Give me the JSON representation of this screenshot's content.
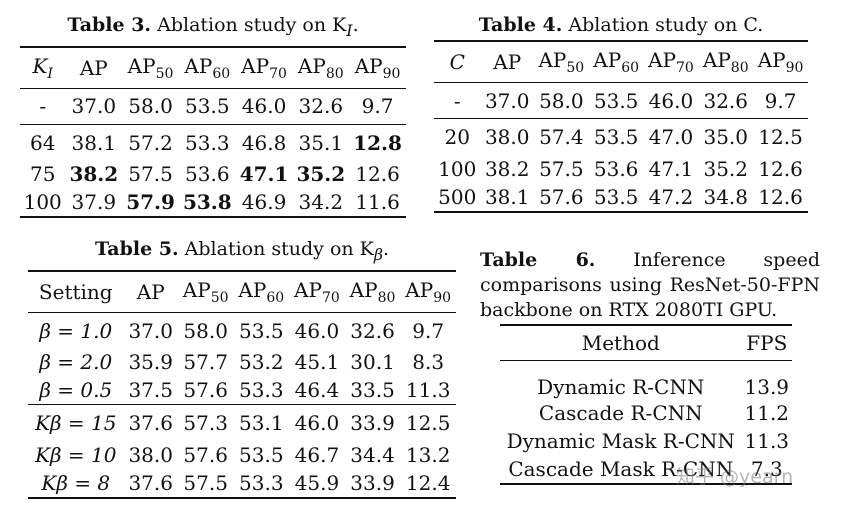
{
  "table3": {
    "label": "Table 3.",
    "caption": "Ablation study on K",
    "caption_sub": "I",
    "caption_end": ".",
    "header": [
      "K_I",
      "AP",
      "AP50",
      "AP60",
      "AP70",
      "AP80",
      "AP90"
    ],
    "groups": [
      [
        [
          "-",
          "37.0",
          "58.0",
          "53.5",
          "46.0",
          "32.6",
          "9.7"
        ]
      ],
      [
        [
          "64",
          "38.1",
          "57.2",
          "53.3",
          "46.8",
          "35.1",
          "12.8"
        ],
        [
          "75",
          "38.2",
          "57.5",
          "53.6",
          "47.1",
          "35.2",
          "12.6"
        ],
        [
          "100",
          "37.9",
          "57.9",
          "53.8",
          "46.9",
          "34.2",
          "11.6"
        ]
      ]
    ]
  },
  "table4": {
    "label": "Table 4.",
    "caption": "Ablation study on C.",
    "header": [
      "C",
      "AP",
      "AP50",
      "AP60",
      "AP70",
      "AP80",
      "AP90"
    ],
    "groups": [
      [
        [
          "-",
          "37.0",
          "58.0",
          "53.5",
          "46.0",
          "32.6",
          "9.7"
        ]
      ],
      [
        [
          "20",
          "38.0",
          "57.4",
          "53.5",
          "47.0",
          "35.0",
          "12.5"
        ],
        [
          "100",
          "38.2",
          "57.5",
          "53.6",
          "47.1",
          "35.2",
          "12.6"
        ],
        [
          "500",
          "38.1",
          "57.6",
          "53.5",
          "47.2",
          "34.8",
          "12.6"
        ]
      ]
    ]
  },
  "table5": {
    "label": "Table 5.",
    "caption": "Ablation study on K",
    "caption_sub": "β",
    "caption_end": ".",
    "header": [
      "Setting",
      "AP",
      "AP50",
      "AP60",
      "AP70",
      "AP80",
      "AP90"
    ],
    "groups": [
      [
        [
          "β = 1.0",
          "37.0",
          "58.0",
          "53.5",
          "46.0",
          "32.6",
          "9.7"
        ],
        [
          "β = 2.0",
          "35.9",
          "57.7",
          "53.2",
          "45.1",
          "30.1",
          "8.3"
        ],
        [
          "β = 0.5",
          "37.5",
          "57.6",
          "53.3",
          "46.4",
          "33.5",
          "11.3"
        ]
      ],
      [
        [
          "Kβ = 15",
          "37.6",
          "57.3",
          "53.1",
          "46.0",
          "33.9",
          "12.5"
        ],
        [
          "Kβ = 10",
          "38.0",
          "57.6",
          "53.5",
          "46.7",
          "34.4",
          "13.2"
        ],
        [
          "Kβ = 8",
          "37.6",
          "57.5",
          "53.3",
          "45.9",
          "33.9",
          "12.4"
        ]
      ]
    ]
  },
  "table6": {
    "label": "Table 6.",
    "caption": "Inference speed comparisons using ResNet-50-FPN backbone on RTX 2080TI GPU.",
    "header": [
      "Method",
      "FPS"
    ],
    "rows": [
      [
        "Dynamic R-CNN",
        "13.9"
      ],
      [
        "Cascade R-CNN",
        "11.2"
      ],
      [
        "Dynamic Mask R-CNN",
        "11.3"
      ],
      [
        "Cascade Mask R-CNN",
        "7.3"
      ]
    ]
  },
  "watermark": "知乎 @yearn"
}
